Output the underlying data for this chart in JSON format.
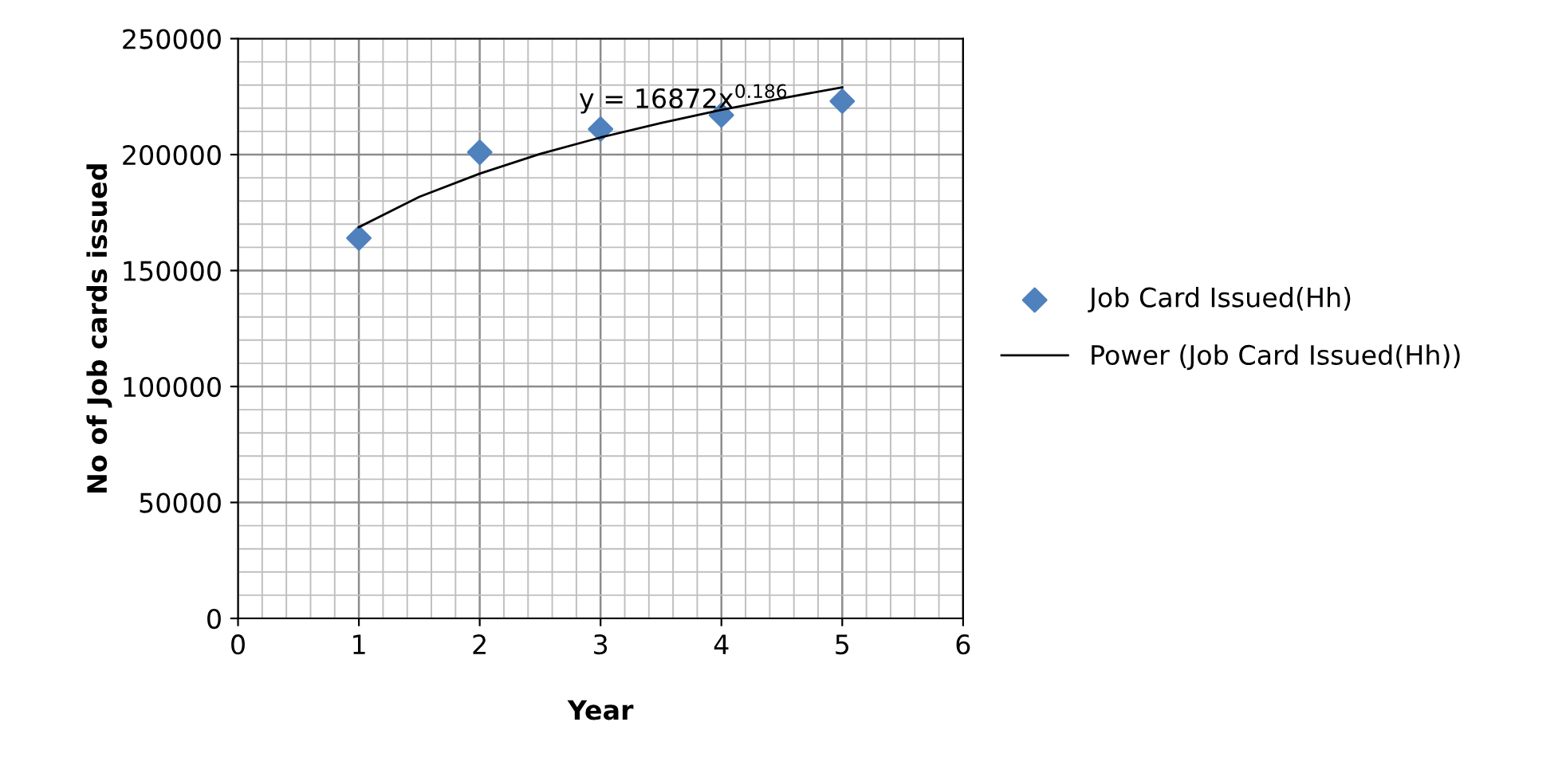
{
  "chart_data": {
    "type": "scatter",
    "xlabel": "Year",
    "ylabel": "No of Job cards issued",
    "xlim": [
      0,
      6
    ],
    "xticks": [
      0,
      1,
      2,
      3,
      4,
      5,
      6
    ],
    "ylim": [
      0,
      250000
    ],
    "yticks": [
      0,
      50000,
      100000,
      150000,
      200000,
      250000
    ],
    "grid": true,
    "legend": "right",
    "marker": "diamond",
    "series": [
      {
        "name": "Job Card Issued(Hh)",
        "color": "#4f81bd",
        "x": [
          1,
          2,
          3,
          4,
          5
        ],
        "values": [
          164000,
          201000,
          211000,
          217000,
          223000
        ]
      },
      {
        "name": "Power (Job Card Issued(Hh))",
        "type": "line",
        "color": "#000000",
        "line_style": "solid",
        "marker": "none",
        "x": [
          1,
          1.5,
          2,
          2.5,
          3,
          3.5,
          4,
          4.5,
          5
        ],
        "values": [
          168700,
          181800,
          191800,
          200300,
          207400,
          213600,
          219300,
          224300,
          229000
        ]
      }
    ],
    "annotations": [
      "y = 16872x$^{0.186}$"
    ]
  }
}
